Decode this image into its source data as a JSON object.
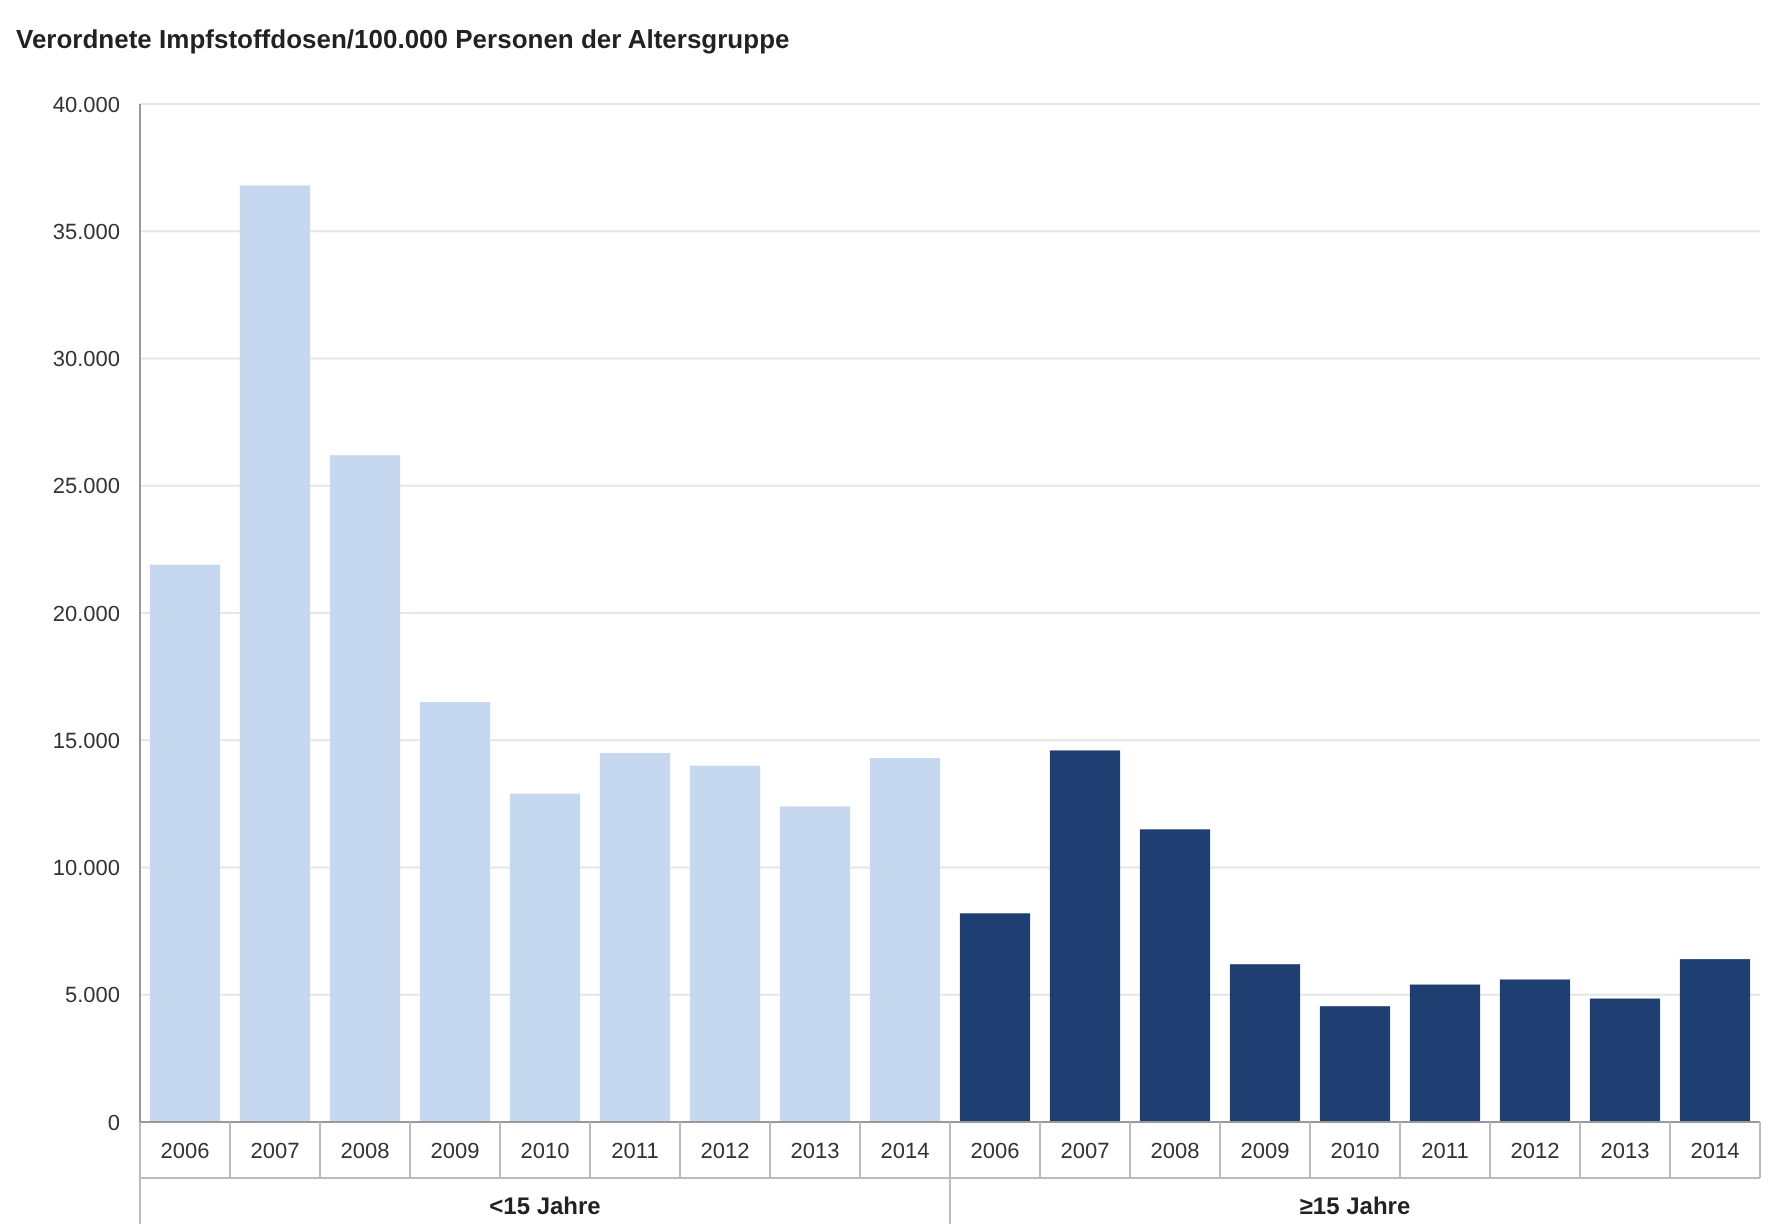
{
  "chart_data": {
    "type": "bar",
    "title": "Verordnete Impfstoffdosen/100.000 Personen der Altersgruppe",
    "categories": [
      "2006",
      "2007",
      "2008",
      "2009",
      "2010",
      "2011",
      "2012",
      "2013",
      "2014",
      "2006",
      "2007",
      "2008",
      "2009",
      "2010",
      "2011",
      "2012",
      "2013",
      "2014"
    ],
    "series": [
      {
        "color": "#c5d8ef",
        "values": [
          21900,
          36800,
          26200,
          16500,
          12900,
          14500,
          14000,
          12400,
          14300,
          null,
          null,
          null,
          null,
          null,
          null,
          null,
          null,
          null
        ]
      },
      {
        "color": "#1f3f73",
        "values": [
          null,
          null,
          null,
          null,
          null,
          null,
          null,
          null,
          null,
          8200,
          14600,
          11500,
          6200,
          4550,
          5400,
          5600,
          4850,
          6400
        ]
      }
    ],
    "ylim": [
      0,
      40000
    ],
    "yticks": [
      {
        "value": 0,
        "label": "0"
      },
      {
        "value": 5000,
        "label": "5.000"
      },
      {
        "value": 10000,
        "label": "10.000"
      },
      {
        "value": 15000,
        "label": "15.000"
      },
      {
        "value": 20000,
        "label": "20.000"
      },
      {
        "value": 25000,
        "label": "25.000"
      },
      {
        "value": 30000,
        "label": "30.000"
      },
      {
        "value": 35000,
        "label": "35.000"
      },
      {
        "value": 40000,
        "label": "40.000"
      }
    ],
    "grid": "y",
    "annotations": [
      "<15 Jahre",
      "≥15 Jahre"
    ]
  }
}
